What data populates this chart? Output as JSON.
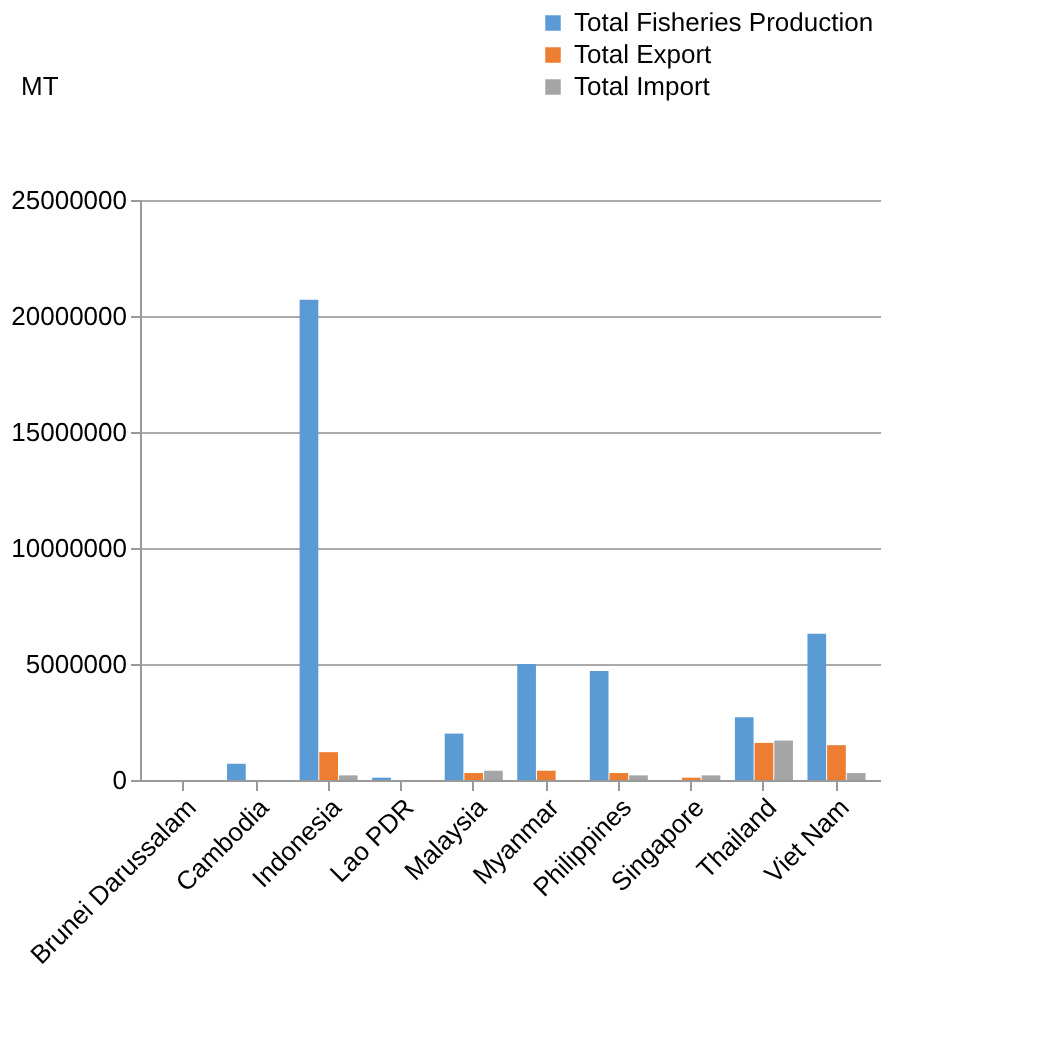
{
  "chart_data": {
    "type": "bar",
    "ylabel": "MT",
    "categories": [
      "Brunei Darussalam",
      "Cambodia",
      "Indonesia",
      "Lao PDR",
      "Malaysia",
      "Myanmar",
      "Philippines",
      "Singapore",
      "Thailand",
      "Viet Nam"
    ],
    "series": [
      {
        "name": "Total Fisheries Production",
        "color": "#5b9bd5",
        "values": [
          0,
          700000,
          20700000,
          100000,
          2000000,
          5000000,
          4700000,
          0,
          2700000,
          6300000
        ]
      },
      {
        "name": "Total Export",
        "color": "#ed7d31",
        "values": [
          0,
          0,
          1200000,
          0,
          300000,
          400000,
          300000,
          100000,
          1600000,
          1500000
        ]
      },
      {
        "name": "Total Import",
        "color": "#a5a5a5",
        "values": [
          0,
          0,
          200000,
          0,
          400000,
          0,
          200000,
          200000,
          1700000,
          300000
        ]
      }
    ],
    "ylim": [
      0,
      25000000
    ],
    "yticks": [
      0,
      5000000,
      10000000,
      15000000,
      20000000,
      25000000
    ],
    "grid": "y",
    "legend": "top right"
  }
}
